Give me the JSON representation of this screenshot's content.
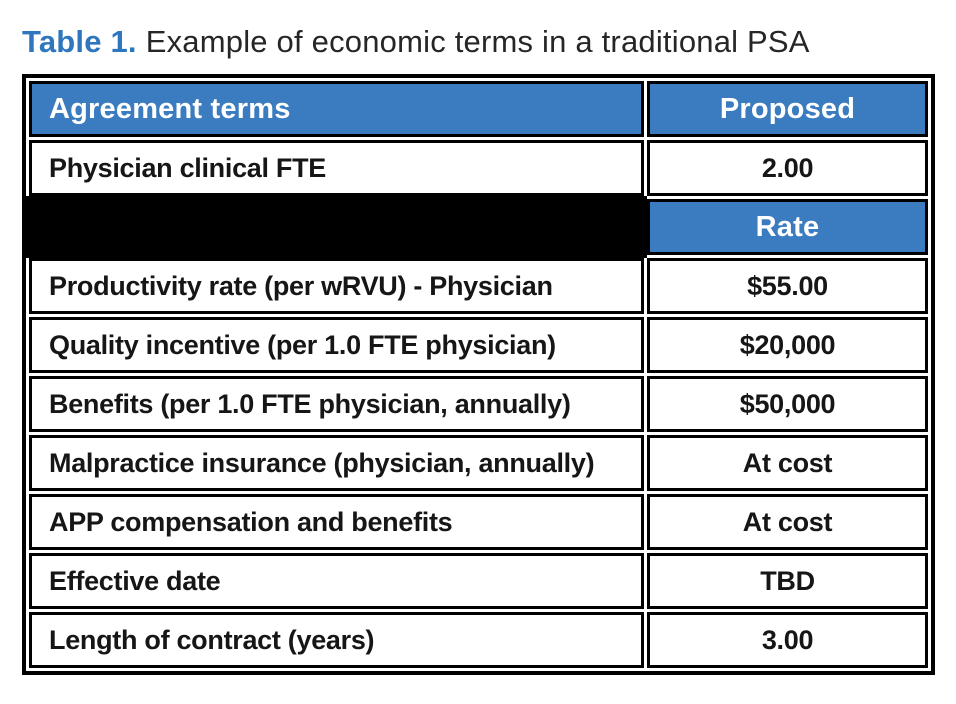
{
  "title": {
    "prefix": "Table 1.",
    "text": "Example of economic terms in a traditional PSA"
  },
  "colors": {
    "header_blue": "#3a7cbf",
    "title_blue": "#2e76bd",
    "spacer_black": "#000000",
    "border_black": "#000000"
  },
  "table": {
    "columns": [
      "Agreement terms",
      "Proposed"
    ],
    "sub_header": {
      "rate_label": "Rate"
    },
    "rows": [
      {
        "term": "Physician clinical FTE",
        "value": "2.00"
      },
      {
        "term": "Productivity rate (per wRVU) - Physician",
        "value": "$55.00"
      },
      {
        "term": "Quality incentive (per 1.0 FTE physician)",
        "value": "$20,000"
      },
      {
        "term": "Benefits (per 1.0 FTE physician, annually)",
        "value": "$50,000"
      },
      {
        "term": "Malpractice insurance (physician, annually)",
        "value": "At cost"
      },
      {
        "term": "APP compensation and benefits",
        "value": "At cost"
      },
      {
        "term": "Effective date",
        "value": "TBD"
      },
      {
        "term": "Length of contract (years)",
        "value": "3.00"
      }
    ]
  }
}
